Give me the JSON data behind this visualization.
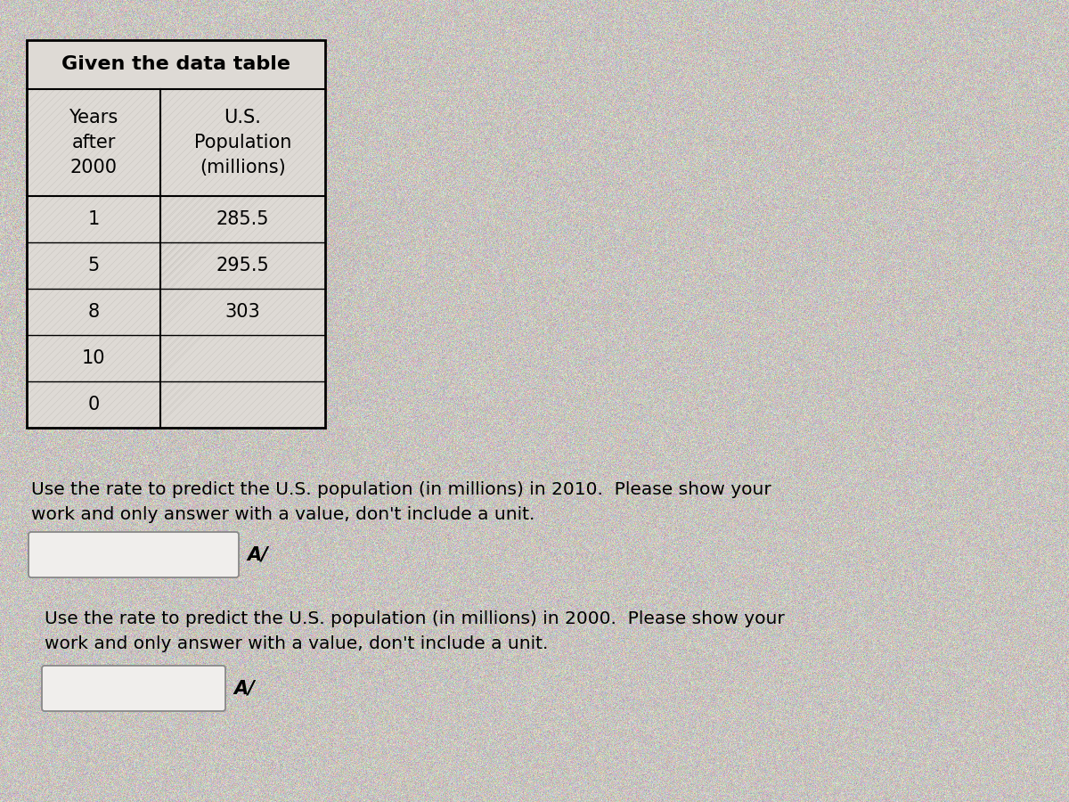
{
  "title": "Given the data table",
  "col1_header": [
    "Years",
    "after",
    "2000"
  ],
  "col2_header": [
    "U.S.",
    "Population",
    "(millions)"
  ],
  "table_rows": [
    [
      "1",
      "285.5"
    ],
    [
      "5",
      "295.5"
    ],
    [
      "8",
      "303"
    ],
    [
      "10",
      ""
    ],
    [
      "0",
      ""
    ]
  ],
  "question1": "Use the rate to predict the U.S. population (in millions) in 2010.  Please show your\nwork and only answer with a value, don't include a unit.",
  "question2": "Use the rate to predict the U.S. population (in millions) in 2000.  Please show your\nwork and only answer with a value, don't include a unit.",
  "bg_color": "#c8c4bf",
  "table_bg": "#dedad5",
  "border_color": "#000000",
  "text_color": "#000000",
  "input_box_color": "#f0eeec",
  "input_box_border": "#888888",
  "noise_alpha": 0.18
}
